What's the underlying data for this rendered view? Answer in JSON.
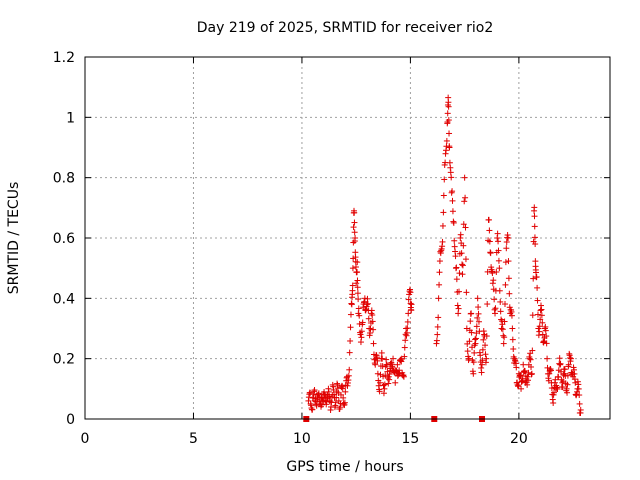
{
  "chart_data": {
    "type": "scatter",
    "title": "Day 219 of 2025, SRMTID for receiver rio2",
    "xlabel": "GPS time / hours",
    "ylabel": "SRMTID / TECUs",
    "xlim": [
      0,
      24.2
    ],
    "ylim": [
      0,
      1.2
    ],
    "xticks": [
      0,
      5,
      10,
      15,
      20
    ],
    "yticks": [
      0,
      0.2,
      0.4,
      0.6,
      0.8,
      1,
      1.2
    ],
    "xtick_labels": [
      "0",
      "5",
      "10",
      "15",
      "20"
    ],
    "ytick_labels": [
      "0",
      "0.2",
      "0.4",
      "0.6",
      "0.8",
      "1",
      "1.2"
    ],
    "grid": true,
    "marker": "+",
    "color": "#e00000",
    "zero_markers_x": [
      10.2,
      16.1,
      18.3
    ],
    "series": [
      {
        "name": "SRMTID",
        "points": [
          [
            10.3,
            0.06
          ],
          [
            10.4,
            0.05
          ],
          [
            10.5,
            0.07
          ],
          [
            10.6,
            0.06
          ],
          [
            10.7,
            0.08
          ],
          [
            10.8,
            0.05
          ],
          [
            10.9,
            0.07
          ],
          [
            11.0,
            0.06
          ],
          [
            11.1,
            0.08
          ],
          [
            11.2,
            0.07
          ],
          [
            11.3,
            0.06
          ],
          [
            11.4,
            0.08
          ],
          [
            11.5,
            0.07
          ],
          [
            11.6,
            0.09
          ],
          [
            11.7,
            0.06
          ],
          [
            11.8,
            0.08
          ],
          [
            11.9,
            0.07
          ],
          [
            12.0,
            0.09
          ],
          [
            12.1,
            0.11
          ],
          [
            12.2,
            0.22
          ],
          [
            12.3,
            0.38
          ],
          [
            12.35,
            0.5
          ],
          [
            12.4,
            0.69
          ],
          [
            12.45,
            0.6
          ],
          [
            12.5,
            0.45
          ],
          [
            12.55,
            0.52
          ],
          [
            12.6,
            0.35
          ],
          [
            12.7,
            0.28
          ],
          [
            12.8,
            0.32
          ],
          [
            12.9,
            0.4
          ],
          [
            13.0,
            0.38
          ],
          [
            13.1,
            0.3
          ],
          [
            13.2,
            0.35
          ],
          [
            13.3,
            0.25
          ],
          [
            13.4,
            0.2
          ],
          [
            13.5,
            0.15
          ],
          [
            13.6,
            0.12
          ],
          [
            13.7,
            0.2
          ],
          [
            13.8,
            0.1
          ],
          [
            13.9,
            0.18
          ],
          [
            14.0,
            0.14
          ],
          [
            14.1,
            0.16
          ],
          [
            14.2,
            0.2
          ],
          [
            14.3,
            0.12
          ],
          [
            14.4,
            0.18
          ],
          [
            14.5,
            0.15
          ],
          [
            14.6,
            0.2
          ],
          [
            14.7,
            0.14
          ],
          [
            14.8,
            0.3
          ],
          [
            14.9,
            0.35
          ],
          [
            15.0,
            0.42
          ],
          [
            15.05,
            0.38
          ],
          [
            16.2,
            0.25
          ],
          [
            16.3,
            0.4
          ],
          [
            16.4,
            0.55
          ],
          [
            16.5,
            0.64
          ],
          [
            16.6,
            0.85
          ],
          [
            16.7,
            0.98
          ],
          [
            16.75,
            1.05
          ],
          [
            16.8,
            0.9
          ],
          [
            16.9,
            0.75
          ],
          [
            17.0,
            0.65
          ],
          [
            17.1,
            0.5
          ],
          [
            17.2,
            0.35
          ],
          [
            17.3,
            0.6
          ],
          [
            17.4,
            0.48
          ],
          [
            17.5,
            0.8
          ],
          [
            17.6,
            0.3
          ],
          [
            17.7,
            0.2
          ],
          [
            17.8,
            0.35
          ],
          [
            17.9,
            0.15
          ],
          [
            18.0,
            0.25
          ],
          [
            18.1,
            0.4
          ],
          [
            18.2,
            0.22
          ],
          [
            18.3,
            0.18
          ],
          [
            18.4,
            0.28
          ],
          [
            18.5,
            0.2
          ],
          [
            18.6,
            0.66
          ],
          [
            18.7,
            0.55
          ],
          [
            18.8,
            0.45
          ],
          [
            18.9,
            0.35
          ],
          [
            19.0,
            0.6
          ],
          [
            19.1,
            0.5
          ],
          [
            19.2,
            0.3
          ],
          [
            19.3,
            0.25
          ],
          [
            19.4,
            0.52
          ],
          [
            19.5,
            0.6
          ],
          [
            19.6,
            0.35
          ],
          [
            19.7,
            0.3
          ],
          [
            19.8,
            0.2
          ],
          [
            19.9,
            0.12
          ],
          [
            20.0,
            0.15
          ],
          [
            20.1,
            0.1
          ],
          [
            20.2,
            0.18
          ],
          [
            20.3,
            0.12
          ],
          [
            20.4,
            0.14
          ],
          [
            20.5,
            0.2
          ],
          [
            20.6,
            0.15
          ],
          [
            20.7,
            0.69
          ],
          [
            20.75,
            0.58
          ],
          [
            20.8,
            0.47
          ],
          [
            20.9,
            0.3
          ],
          [
            21.0,
            0.36
          ],
          [
            21.1,
            0.28
          ],
          [
            21.2,
            0.3
          ],
          [
            21.3,
            0.2
          ],
          [
            21.4,
            0.15
          ],
          [
            21.5,
            0.12
          ],
          [
            21.6,
            0.08
          ],
          [
            21.7,
            0.1
          ],
          [
            21.8,
            0.14
          ],
          [
            21.9,
            0.18
          ],
          [
            22.0,
            0.12
          ],
          [
            22.1,
            0.15
          ],
          [
            22.2,
            0.1
          ],
          [
            22.3,
            0.18
          ],
          [
            22.4,
            0.2
          ],
          [
            22.5,
            0.14
          ],
          [
            22.6,
            0.12
          ],
          [
            22.7,
            0.1
          ],
          [
            22.8,
            0.05
          ],
          [
            22.85,
            0.03
          ]
        ]
      }
    ]
  }
}
